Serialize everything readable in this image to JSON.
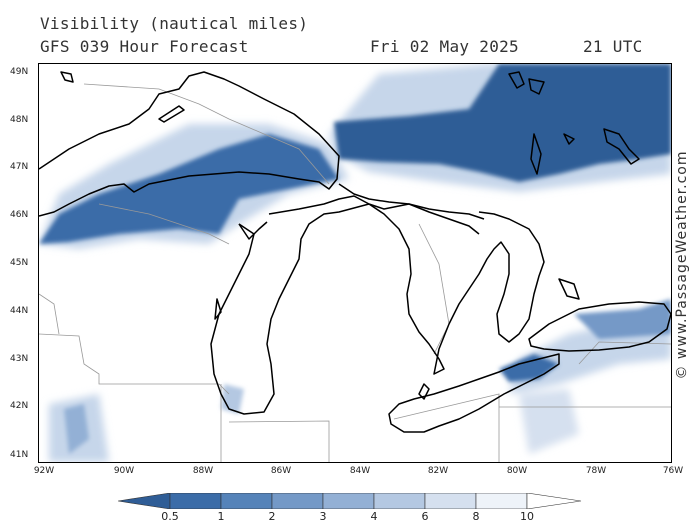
{
  "header": {
    "title": "Visibility (nautical miles)",
    "subtitle": "GFS 039 Hour Forecast",
    "date": "Fri 02 May 2025",
    "time": "21 UTC"
  },
  "watermark": "© www.PassageWeather.com",
  "axes": {
    "latitude_ticks": [
      "49N",
      "48N",
      "47N",
      "46N",
      "45N",
      "44N",
      "43N",
      "42N",
      "41N"
    ],
    "longitude_ticks": [
      "92W",
      "90W",
      "88W",
      "86W",
      "84W",
      "82W",
      "80W",
      "78W",
      "76W"
    ]
  },
  "colorbar": {
    "labels": [
      "0.5",
      "1",
      "2",
      "3",
      "4",
      "6",
      "8",
      "10"
    ],
    "colors": [
      "#2f5d96",
      "#3b6ca8",
      "#5583b9",
      "#7499c7",
      "#93b0d5",
      "#b4c8e2",
      "#d5e0ef",
      "#eef3f9",
      "#ffffff"
    ]
  },
  "colors": {
    "low_visibility": "#2f5d96",
    "medium_visibility": "#7499c7",
    "light_visibility": "#c6d6ea",
    "coastline": "#000000",
    "border": "#999999"
  }
}
